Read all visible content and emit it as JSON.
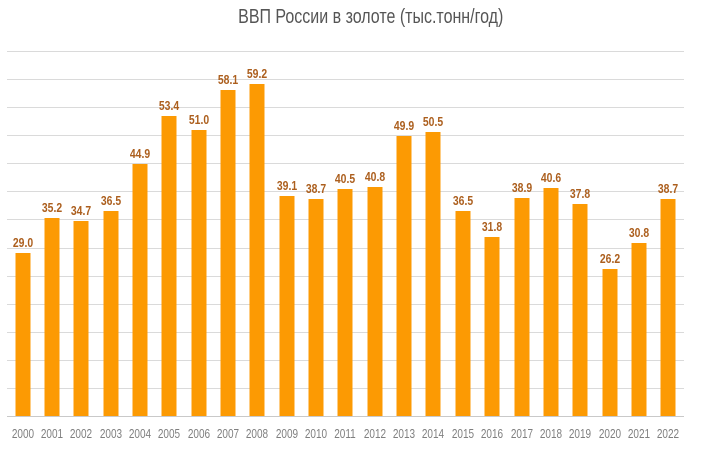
{
  "chart_data": {
    "type": "bar",
    "title": "ВВП России в золоте (тыс.тонн/год)",
    "categories": [
      "2000",
      "2001",
      "2002",
      "2003",
      "2004",
      "2005",
      "2006",
      "2007",
      "2008",
      "2009",
      "2010",
      "2011",
      "2012",
      "2013",
      "2014",
      "2015",
      "2016",
      "2017",
      "2018",
      "2019",
      "2020",
      "2021",
      "2022"
    ],
    "values": [
      29.0,
      35.2,
      34.7,
      36.5,
      44.9,
      53.4,
      51.0,
      58.1,
      59.2,
      39.1,
      38.7,
      40.5,
      40.8,
      49.9,
      50.5,
      36.5,
      31.8,
      38.9,
      40.6,
      37.8,
      26.2,
      30.8,
      38.7
    ],
    "value_labels": [
      "29.0",
      "35.2",
      "34.7",
      "36.5",
      "44.9",
      "53.4",
      "51.0",
      "58.1",
      "59.2",
      "39.1",
      "38.7",
      "40.5",
      "40.8",
      "49.9",
      "50.5",
      "36.5",
      "31.8",
      "38.9",
      "40.6",
      "37.8",
      "26.2",
      "30.8",
      "38.7"
    ],
    "xlabel": "",
    "ylabel": "",
    "ylim": [
      0,
      65
    ],
    "gridline_step": 5,
    "grid": true,
    "legend": false,
    "y_axis_tick_labels_visible": false,
    "colors": {
      "bar": "#fc9a03",
      "value_label": "#ac5f1e",
      "title": "#555555",
      "x_axis_label": "#7f7f7f",
      "gridline": "#dadada",
      "axis_line": "#c9c9c9"
    }
  }
}
